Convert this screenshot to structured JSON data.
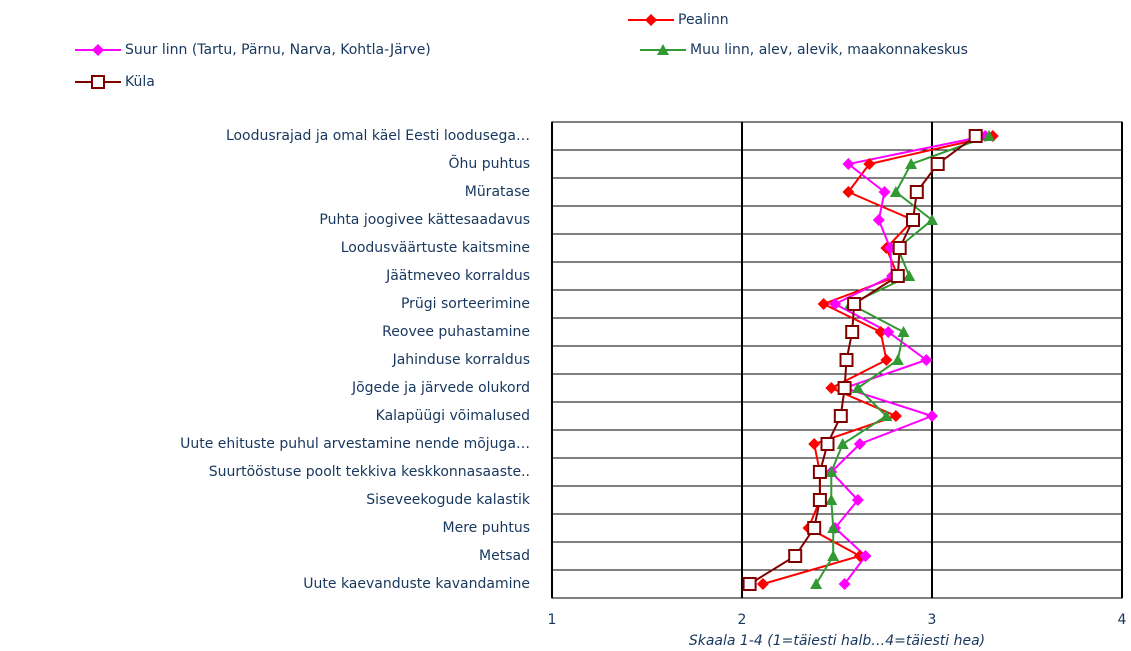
{
  "chart_data": {
    "type": "line",
    "xlabel": "Skaala 1-4 (1=täiesti halb…4=täiesti hea)",
    "categories": [
      "Loodusrajad ja omal käel Eesti loodusega…",
      "Õhu puhtus",
      "Müratase",
      "Puhta joogivee kättesaadavus",
      "Loodusväärtuste kaitsmine",
      "Jäätmeveo korraldus",
      "Prügi sorteerimine",
      "Reovee puhastamine",
      "Jahinduse korraldus",
      "Jõgede ja järvede olukord",
      "Kalapüügi võimalused",
      "Uute ehituste puhul arvestamine nende mõjuga…",
      "Suurtööstuse poolt tekkiva keskkonnasaaste..",
      "Siseveekogude kalastik",
      "Mere puhtus",
      "Metsad",
      "Uute kaevanduste kavandamine"
    ],
    "series": [
      {
        "name": "Pealinn",
        "color": "#ff0000",
        "marker": "diamond",
        "values": [
          3.32,
          2.67,
          2.56,
          2.9,
          2.76,
          2.82,
          2.43,
          2.73,
          2.76,
          2.47,
          2.81,
          2.38,
          2.41,
          2.41,
          2.35,
          2.62,
          2.11
        ]
      },
      {
        "name": "Suur linn (Tartu, Pärnu, Narva, Kohtla-Järve)",
        "color": "#ff00ff",
        "marker": "diamond",
        "values": [
          3.28,
          2.56,
          2.75,
          2.72,
          2.78,
          2.79,
          2.49,
          2.77,
          2.97,
          2.54,
          3.0,
          2.62,
          2.47,
          2.61,
          2.49,
          2.65,
          2.54
        ]
      },
      {
        "name": "Muu linn, alev, alevik, maakonnakeskus",
        "color": "#339933",
        "marker": "triangle",
        "values": [
          3.3,
          2.89,
          2.81,
          3.0,
          2.82,
          2.88,
          2.57,
          2.85,
          2.82,
          2.61,
          2.76,
          2.53,
          2.47,
          2.47,
          2.48,
          2.48,
          2.39
        ]
      },
      {
        "name": "Küla",
        "color": "#800000",
        "marker": "square",
        "values": [
          3.23,
          3.03,
          2.92,
          2.9,
          2.83,
          2.82,
          2.59,
          2.58,
          2.55,
          2.54,
          2.52,
          2.45,
          2.41,
          2.41,
          2.38,
          2.28,
          2.04
        ]
      }
    ],
    "xlim": [
      1,
      4
    ],
    "xticks": [
      1,
      2,
      3,
      4
    ],
    "grid": true
  }
}
